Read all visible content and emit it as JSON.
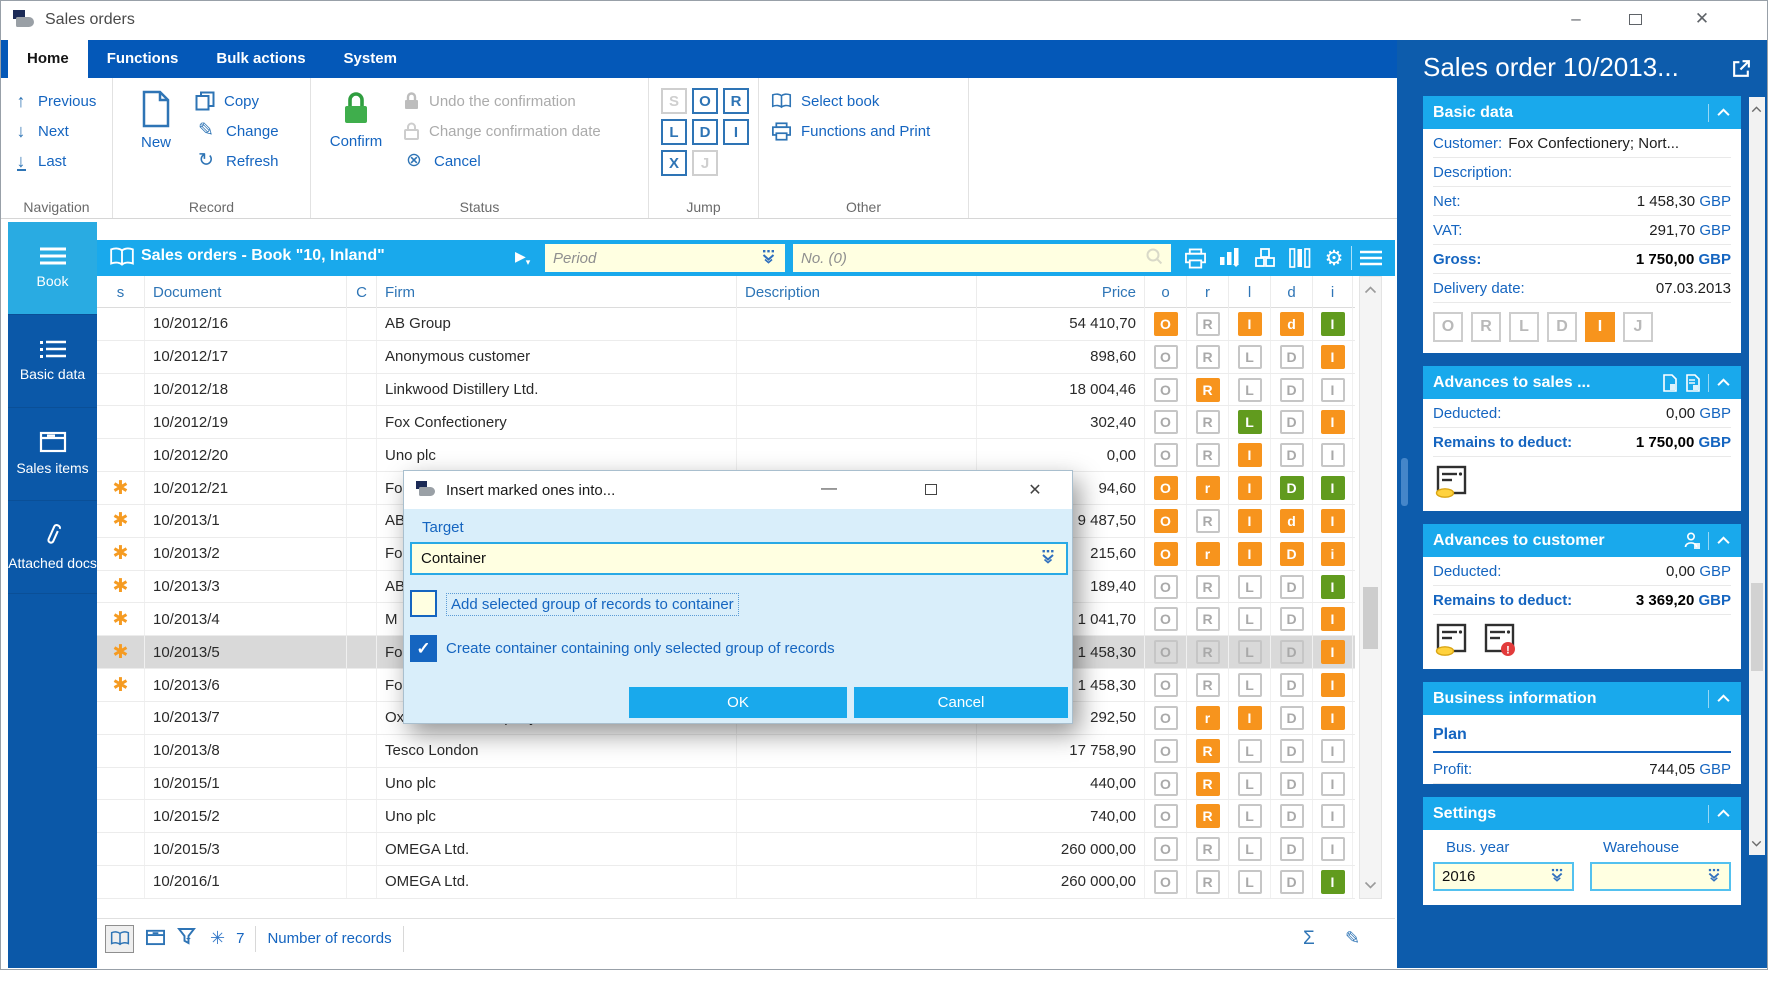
{
  "window": {
    "title": "Sales orders",
    "controls": {
      "minimize": "–",
      "maximize": "",
      "close": "✕"
    }
  },
  "ribbon": {
    "tabs": [
      {
        "label": "Home",
        "active": true
      },
      {
        "label": "Functions",
        "active": false
      },
      {
        "label": "Bulk actions",
        "active": false
      },
      {
        "label": "System",
        "active": false
      }
    ],
    "groups": {
      "navigation": {
        "label": "Navigation",
        "previous": "Previous",
        "next": "Next",
        "last": "Last"
      },
      "record": {
        "label": "Record",
        "new": "New",
        "copy": "Copy",
        "change": "Change",
        "refresh": "Refresh"
      },
      "status": {
        "label": "Status",
        "confirm": "Confirm",
        "items": [
          {
            "label": "Undo the confirmation",
            "disabled": true
          },
          {
            "label": "Change confirmation date",
            "disabled": true
          },
          {
            "label": "Cancel",
            "disabled": false
          }
        ]
      },
      "jump": {
        "label": "Jump",
        "letters": [
          {
            "ch": "S",
            "on": false
          },
          {
            "ch": "O",
            "on": true
          },
          {
            "ch": "R",
            "on": true
          },
          {
            "ch": "L",
            "on": true
          },
          {
            "ch": "D",
            "on": true
          },
          {
            "ch": "I",
            "on": true
          },
          {
            "ch": "X",
            "on": true
          },
          {
            "ch": "J",
            "on": false
          }
        ]
      },
      "other": {
        "label": "Other",
        "select_book": "Select book",
        "functions_print": "Functions and Print"
      }
    }
  },
  "sidebar": {
    "items": [
      {
        "label": "Book",
        "active": true
      },
      {
        "label": "Basic data",
        "active": false
      },
      {
        "label": "Sales items",
        "active": false
      },
      {
        "label": "Attached docs",
        "active": false
      }
    ]
  },
  "browser": {
    "title": "Sales orders - Book \"10, Inland\"",
    "period_placeholder": "Period",
    "no_placeholder": "No. (0)",
    "columns": [
      "s",
      "Document",
      "C",
      "Firm",
      "Description",
      "Price",
      "o",
      "r",
      "l",
      "d",
      "i"
    ],
    "rows": [
      {
        "marked": false,
        "doc": "10/2012/16",
        "firm": "AB Group",
        "desc": "",
        "price": "54 410,70",
        "selected": false,
        "st": [
          [
            "O",
            "o"
          ],
          [
            "R",
            "n"
          ],
          [
            "I",
            "o"
          ],
          [
            "d",
            "o"
          ],
          [
            "I",
            "g"
          ]
        ]
      },
      {
        "marked": false,
        "doc": "10/2012/17",
        "firm": "Anonymous customer",
        "desc": "",
        "price": "898,60",
        "selected": false,
        "st": [
          [
            "O",
            "n"
          ],
          [
            "R",
            "n"
          ],
          [
            "L",
            "n"
          ],
          [
            "D",
            "n"
          ],
          [
            "I",
            "o"
          ]
        ]
      },
      {
        "marked": false,
        "doc": "10/2012/18",
        "firm": "Linkwood Distillery Ltd.",
        "desc": "",
        "price": "18 004,46",
        "selected": false,
        "st": [
          [
            "O",
            "n"
          ],
          [
            "R",
            "o"
          ],
          [
            "L",
            "n"
          ],
          [
            "D",
            "n"
          ],
          [
            "I",
            "n"
          ]
        ]
      },
      {
        "marked": false,
        "doc": "10/2012/19",
        "firm": "Fox Confectionery",
        "desc": "",
        "price": "302,40",
        "selected": false,
        "st": [
          [
            "O",
            "n"
          ],
          [
            "R",
            "n"
          ],
          [
            "L",
            "g"
          ],
          [
            "D",
            "n"
          ],
          [
            "I",
            "o"
          ]
        ]
      },
      {
        "marked": false,
        "doc": "10/2012/20",
        "firm": "Uno plc",
        "desc": "",
        "price": "0,00",
        "selected": false,
        "st": [
          [
            "O",
            "n"
          ],
          [
            "R",
            "n"
          ],
          [
            "I",
            "o"
          ],
          [
            "D",
            "n"
          ],
          [
            "I",
            "n"
          ]
        ]
      },
      {
        "marked": true,
        "doc": "10/2012/21",
        "firm": "Fo",
        "desc": "",
        "price": "94,60",
        "selected": false,
        "st": [
          [
            "O",
            "o"
          ],
          [
            "r",
            "o"
          ],
          [
            "I",
            "o"
          ],
          [
            "D",
            "g"
          ],
          [
            "I",
            "g"
          ]
        ]
      },
      {
        "marked": true,
        "doc": "10/2013/1",
        "firm": "AB",
        "desc": "",
        "price": "9 487,50",
        "selected": false,
        "st": [
          [
            "O",
            "o"
          ],
          [
            "R",
            "n"
          ],
          [
            "I",
            "o"
          ],
          [
            "d",
            "o"
          ],
          [
            "I",
            "o"
          ]
        ]
      },
      {
        "marked": true,
        "doc": "10/2013/2",
        "firm": "Fo",
        "desc": "",
        "price": "215,60",
        "selected": false,
        "st": [
          [
            "O",
            "o"
          ],
          [
            "r",
            "o"
          ],
          [
            "I",
            "o"
          ],
          [
            "D",
            "o"
          ],
          [
            "i",
            "o"
          ]
        ]
      },
      {
        "marked": true,
        "doc": "10/2013/3",
        "firm": "AB",
        "desc": "",
        "price": "189,40",
        "selected": false,
        "st": [
          [
            "O",
            "n"
          ],
          [
            "R",
            "n"
          ],
          [
            "L",
            "n"
          ],
          [
            "D",
            "n"
          ],
          [
            "I",
            "g"
          ]
        ]
      },
      {
        "marked": true,
        "doc": "10/2013/4",
        "firm": "M",
        "desc": "",
        "price": "1 041,70",
        "selected": false,
        "st": [
          [
            "O",
            "n"
          ],
          [
            "R",
            "n"
          ],
          [
            "L",
            "n"
          ],
          [
            "D",
            "n"
          ],
          [
            "I",
            "o"
          ]
        ]
      },
      {
        "marked": true,
        "doc": "10/2013/5",
        "firm": "Fo",
        "desc": "",
        "price": "1 458,30",
        "selected": true,
        "st": [
          [
            "O",
            "n"
          ],
          [
            "R",
            "n"
          ],
          [
            "L",
            "n"
          ],
          [
            "D",
            "n"
          ],
          [
            "I",
            "o"
          ]
        ]
      },
      {
        "marked": true,
        "doc": "10/2013/6",
        "firm": "Fo",
        "desc": "",
        "price": "1 458,30",
        "selected": false,
        "st": [
          [
            "O",
            "n"
          ],
          [
            "R",
            "n"
          ],
          [
            "L",
            "n"
          ],
          [
            "D",
            "n"
          ],
          [
            "I",
            "o"
          ]
        ]
      },
      {
        "marked": false,
        "doc": "10/2013/7",
        "firm": "Oxford Wine Company",
        "desc": "",
        "price": "292,50",
        "selected": false,
        "st": [
          [
            "O",
            "n"
          ],
          [
            "r",
            "o"
          ],
          [
            "I",
            "o"
          ],
          [
            "D",
            "n"
          ],
          [
            "I",
            "o"
          ]
        ]
      },
      {
        "marked": false,
        "doc": "10/2013/8",
        "firm": "Tesco London",
        "desc": "",
        "price": "17 758,90",
        "selected": false,
        "st": [
          [
            "O",
            "n"
          ],
          [
            "R",
            "o"
          ],
          [
            "L",
            "n"
          ],
          [
            "D",
            "n"
          ],
          [
            "I",
            "n"
          ]
        ]
      },
      {
        "marked": false,
        "doc": "10/2015/1",
        "firm": "Uno plc",
        "desc": "",
        "price": "440,00",
        "selected": false,
        "st": [
          [
            "O",
            "n"
          ],
          [
            "R",
            "o"
          ],
          [
            "L",
            "n"
          ],
          [
            "D",
            "n"
          ],
          [
            "I",
            "n"
          ]
        ]
      },
      {
        "marked": false,
        "doc": "10/2015/2",
        "firm": "Uno plc",
        "desc": "",
        "price": "740,00",
        "selected": false,
        "st": [
          [
            "O",
            "n"
          ],
          [
            "R",
            "o"
          ],
          [
            "L",
            "n"
          ],
          [
            "D",
            "n"
          ],
          [
            "I",
            "n"
          ]
        ]
      },
      {
        "marked": false,
        "doc": "10/2015/3",
        "firm": "OMEGA Ltd.",
        "desc": "",
        "price": "260 000,00",
        "selected": false,
        "st": [
          [
            "O",
            "n"
          ],
          [
            "R",
            "n"
          ],
          [
            "L",
            "n"
          ],
          [
            "D",
            "n"
          ],
          [
            "I",
            "n"
          ]
        ]
      },
      {
        "marked": false,
        "doc": "10/2016/1",
        "firm": "OMEGA Ltd.",
        "desc": "",
        "price": "260 000,00",
        "selected": false,
        "st": [
          [
            "O",
            "n"
          ],
          [
            "R",
            "n"
          ],
          [
            "L",
            "n"
          ],
          [
            "D",
            "n"
          ],
          [
            "I",
            "g"
          ]
        ]
      }
    ],
    "footer": {
      "marked_count": "7",
      "records_label": "Number of records"
    }
  },
  "dialog": {
    "title": "Insert marked ones into...",
    "target_label": "Target",
    "target_value": "Container",
    "checkbox1": {
      "label": "Add selected group of records to container",
      "checked": false
    },
    "checkbox2": {
      "label": "Create container containing only selected group of records",
      "checked": true
    },
    "ok": "OK",
    "cancel": "Cancel"
  },
  "panel": {
    "title": "Sales order 10/2013...",
    "basic": {
      "header": "Basic data",
      "rows": [
        {
          "label": "Customer:",
          "value": "Fox Confectionery; Nort...",
          "inline": true
        },
        {
          "label": "Description:",
          "value": ""
        },
        {
          "label": "Net:",
          "value": "1 458,30",
          "cur": "GBP"
        },
        {
          "label": "VAT:",
          "value": "291,70",
          "cur": "GBP"
        },
        {
          "label": "Gross:",
          "value": "1 750,00",
          "cur": "GBP",
          "bold": true
        },
        {
          "label": "Delivery date:",
          "value": "07.03.2013"
        }
      ],
      "status": [
        [
          "O",
          false
        ],
        [
          "R",
          false
        ],
        [
          "L",
          false
        ],
        [
          "D",
          false
        ],
        [
          "I",
          true
        ],
        [
          "J",
          false
        ]
      ]
    },
    "adv_sales": {
      "header": "Advances to sales ...",
      "rows": [
        {
          "label": "Deducted:",
          "value": "0,00",
          "cur": "GBP"
        },
        {
          "label": "Remains to deduct:",
          "value": "1 750,00",
          "cur": "GBP",
          "bold": true
        }
      ]
    },
    "adv_customer": {
      "header": "Advances to customer",
      "rows": [
        {
          "label": "Deducted:",
          "value": "0,00",
          "cur": "GBP"
        },
        {
          "label": "Remains to deduct:",
          "value": "3 369,20",
          "cur": "GBP",
          "bold": true
        }
      ]
    },
    "business": {
      "header": "Business information",
      "plan": "Plan",
      "rows": [
        {
          "label": "Profit:",
          "value": "744,05",
          "cur": "GBP"
        }
      ]
    },
    "settings": {
      "header": "Settings",
      "busyear_label": "Bus. year",
      "busyear_value": "2016",
      "warehouse_label": "Warehouse",
      "warehouse_value": ""
    }
  },
  "colors": {
    "band_blue": "#0458b8",
    "panel_blue": "#0d5cac",
    "sidebar_blue": "#0b58a8",
    "cyan": "#19a9ec",
    "active_cyan": "#29abe2",
    "orange": "#f7941d",
    "green": "#619b1e",
    "field_yellow": "#ffffe1",
    "link_blue": "#1565c0",
    "dialog_bg": "#d9eefa"
  }
}
